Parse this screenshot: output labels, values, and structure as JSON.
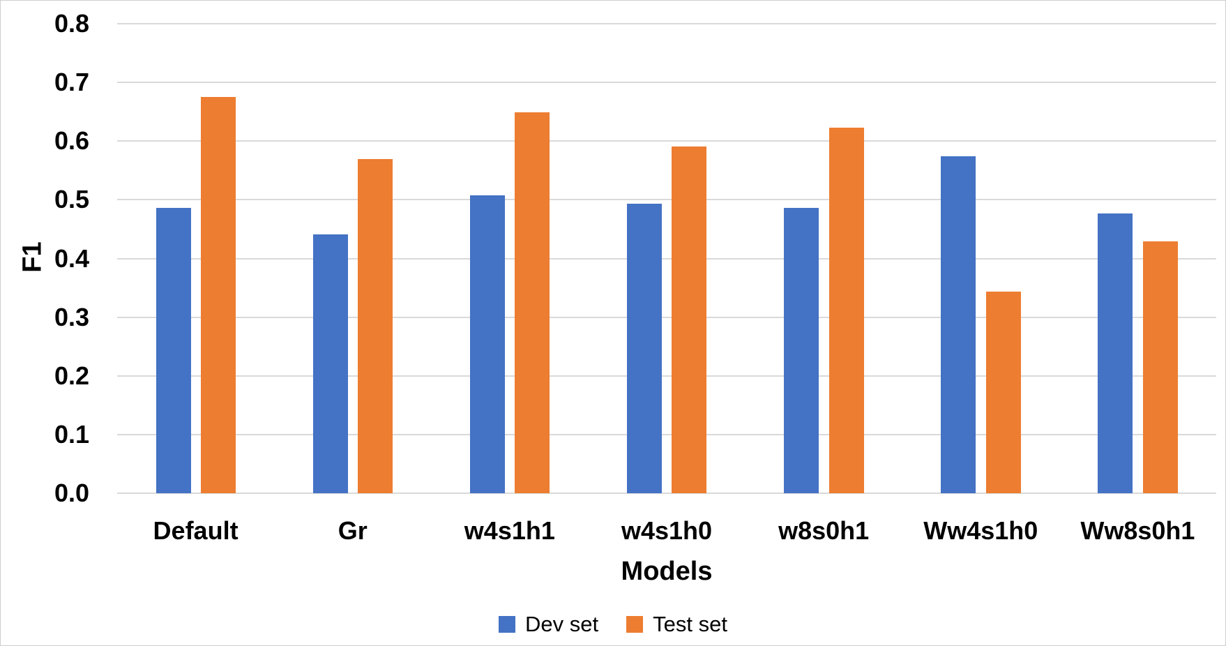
{
  "chart_data": {
    "type": "bar",
    "title": "",
    "categories": [
      "Default",
      "Gr",
      "w4s1h1",
      "w4s1h0",
      "w8s0h1",
      "Ww4s1h0",
      "Ww8s0h1"
    ],
    "series": [
      {
        "name": "Dev set",
        "color": "#4472C4",
        "values": [
          0.486,
          0.441,
          0.508,
          0.493,
          0.486,
          0.574,
          0.477
        ]
      },
      {
        "name": "Test set",
        "color": "#ED7D31",
        "values": [
          0.675,
          0.569,
          0.649,
          0.591,
          0.623,
          0.344,
          0.429
        ]
      }
    ],
    "xlabel": "Models",
    "ylabel": "F1",
    "ylim": [
      0,
      0.8
    ],
    "ytick_step": 0.1,
    "ytick_labels": [
      "0.0",
      "0.1",
      "0.2",
      "0.3",
      "0.4",
      "0.5",
      "0.6",
      "0.7",
      "0.8"
    ],
    "grid": true,
    "legend_position": "bottom",
    "gridline_color": "#D9D9D9",
    "frame_border_color": "#CDCDCD",
    "text_color": "#000000"
  }
}
